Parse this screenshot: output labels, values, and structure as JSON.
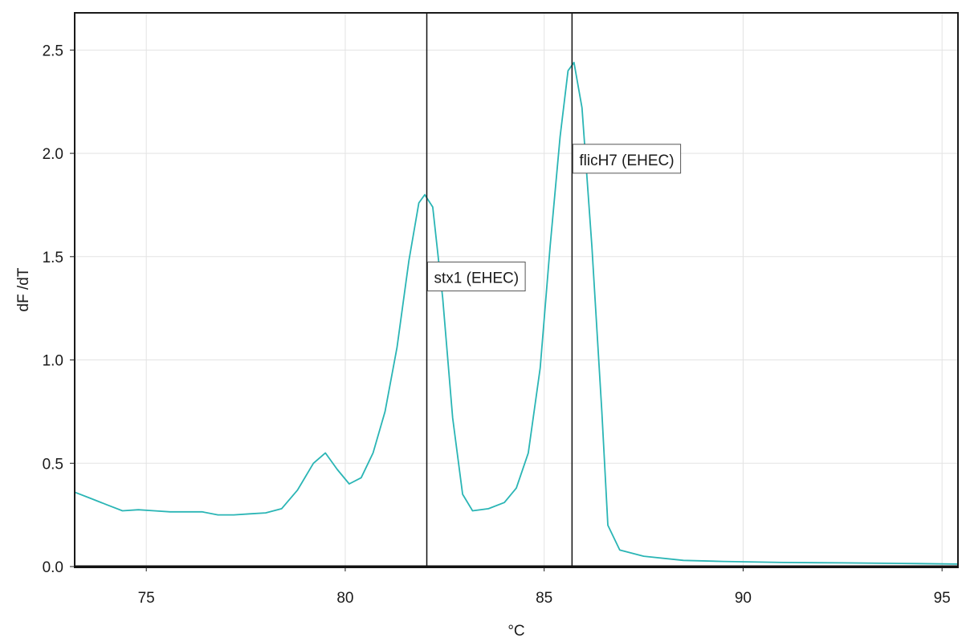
{
  "chart_data": {
    "type": "line",
    "xlabel": "°C",
    "ylabel": "dF /dT",
    "xlim": [
      73.2,
      95.4
    ],
    "ylim": [
      0,
      2.68
    ],
    "xticks": [
      75,
      80,
      85,
      90,
      95
    ],
    "xtick_labels": [
      "75",
      "80",
      "85",
      "90",
      "95"
    ],
    "yticks": [
      0,
      0.5,
      1.0,
      1.5,
      2.0,
      2.5
    ],
    "ytick_labels": [
      "0.0",
      "0.5",
      "1.0",
      "1.5",
      "2.0",
      "2.5"
    ],
    "grid": true,
    "series": [
      {
        "color": "#2ab5b5",
        "x": [
          73.2,
          73.6,
          74.0,
          74.4,
          74.8,
          75.2,
          75.6,
          76.0,
          76.4,
          76.8,
          77.2,
          77.6,
          78.0,
          78.4,
          78.8,
          79.2,
          79.5,
          79.8,
          80.1,
          80.4,
          80.7,
          81.0,
          81.3,
          81.6,
          81.85,
          82.0,
          82.2,
          82.45,
          82.7,
          82.95,
          83.2,
          83.6,
          84.0,
          84.3,
          84.6,
          84.9,
          85.15,
          85.4,
          85.6,
          85.75,
          85.95,
          86.2,
          86.45,
          86.6,
          86.9,
          87.5,
          88.5,
          89.5,
          91.0,
          92.5,
          94.0,
          95.4
        ],
        "y": [
          0.36,
          0.33,
          0.3,
          0.27,
          0.275,
          0.27,
          0.265,
          0.265,
          0.265,
          0.25,
          0.25,
          0.255,
          0.26,
          0.28,
          0.37,
          0.5,
          0.55,
          0.47,
          0.4,
          0.43,
          0.55,
          0.75,
          1.06,
          1.48,
          1.76,
          1.8,
          1.74,
          1.3,
          0.72,
          0.35,
          0.27,
          0.28,
          0.31,
          0.38,
          0.55,
          0.96,
          1.55,
          2.08,
          2.4,
          2.44,
          2.22,
          1.55,
          0.75,
          0.2,
          0.08,
          0.05,
          0.03,
          0.025,
          0.02,
          0.018,
          0.015,
          0.012
        ]
      }
    ],
    "markers": [
      {
        "x": 82.05,
        "label": "stx1 (EHEC)",
        "label_y": 1.4
      },
      {
        "x": 85.7,
        "label": "flicH7 (EHEC)",
        "label_y": 1.97
      }
    ]
  }
}
